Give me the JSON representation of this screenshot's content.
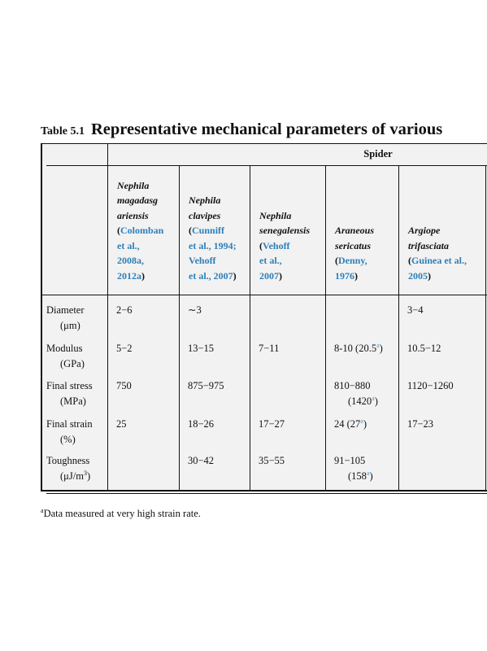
{
  "title": {
    "label": "Table 5.1",
    "text": "Representative mechanical parameters of various"
  },
  "table": {
    "group_header": "Spider",
    "columns": [
      {
        "species": [
          "Nephila",
          "magadasg",
          "ariensis"
        ],
        "ref": {
          "open": "(",
          "lines": [
            "Colomban",
            "et al.,",
            "2008a,",
            "2012a"
          ],
          "close": ")"
        }
      },
      {
        "species": [
          "Nephila",
          "clavipes"
        ],
        "ref": {
          "open": "(",
          "lines": [
            "Cunniff",
            "et al., 1994;",
            "Vehoff",
            "et al., 2007"
          ],
          "close": ")"
        }
      },
      {
        "species": [
          "Nephila",
          "senegalensis"
        ],
        "ref": {
          "open": "(",
          "lines": [
            "Vehoff",
            "et al.,",
            "2007"
          ],
          "close": ")"
        }
      },
      {
        "species": [
          "Araneous",
          "sericatus"
        ],
        "ref": {
          "open": "(",
          "lines": [
            "Denny,",
            "1976"
          ],
          "close": ")"
        }
      },
      {
        "species": [
          "Argiope",
          "trifasciata"
        ],
        "ref": {
          "open": "(",
          "lines": [
            "Guinea et al.,",
            "2005"
          ],
          "close": ")"
        }
      }
    ],
    "rows": [
      {
        "label": [
          "Diameter",
          "(μm)"
        ],
        "cells": [
          [
            "2−6"
          ],
          [
            "∼3"
          ],
          [],
          [],
          [
            "3−4"
          ]
        ]
      },
      {
        "label": [
          "Modulus",
          "(GPa)"
        ],
        "cells": [
          [
            "5−2"
          ],
          [
            "13−15"
          ],
          [
            "7−11"
          ],
          [
            {
              "text": "8-10 (20.5",
              "sup": "a",
              "tail": ")"
            }
          ],
          [
            "10.5−12"
          ]
        ]
      },
      {
        "label": [
          "Final stress",
          "(MPa)"
        ],
        "cells": [
          [
            "750"
          ],
          [
            "875−975"
          ],
          [],
          [
            "810−880",
            {
              "text": "(1420",
              "sup": "a",
              "tail": ")"
            }
          ],
          [
            "1120−1260"
          ]
        ]
      },
      {
        "label": [
          "Final strain",
          "(%)"
        ],
        "cells": [
          [
            "25"
          ],
          [
            "18−26"
          ],
          [
            "17−27"
          ],
          [
            {
              "text": "24 (27",
              "sup": "a",
              "tail": ")"
            }
          ],
          [
            "17−23"
          ]
        ]
      },
      {
        "label": [
          "Toughness",
          {
            "text": "(μJ/m",
            "sup": "3",
            "tail": ")"
          }
        ],
        "cells": [
          [],
          [
            "30−42"
          ],
          [
            "35−55"
          ],
          [
            "91−105",
            {
              "text": "(158",
              "sup": "a",
              "tail": ")"
            }
          ],
          []
        ]
      }
    ]
  },
  "footnote": {
    "sup": "a",
    "text": "Data measured at very high strain rate."
  }
}
